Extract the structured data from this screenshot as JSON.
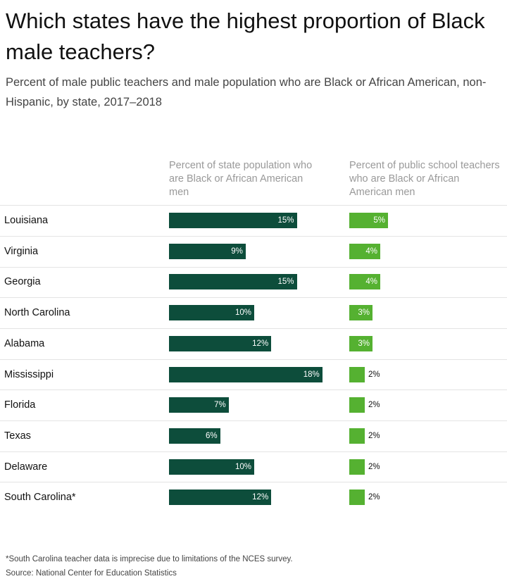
{
  "chart_data": {
    "type": "bar",
    "title": "Which states have the highest proportion of Black male teachers?",
    "subtitle": "Percent of male public teachers and male population who are Black or African American, non-Hispanic, by state, 2017–2018",
    "categories": [
      "Louisiana",
      "Virginia",
      "Georgia",
      "North Carolina",
      "Alabama",
      "Mississippi",
      "Florida",
      "Texas",
      "Delaware",
      "South Carolina*"
    ],
    "series": [
      {
        "name": "Percent of state population who are Black or African American men",
        "color": "#0d4d3b",
        "values": [
          15,
          9,
          15,
          10,
          12,
          18,
          7,
          6,
          10,
          12
        ],
        "value_labels": [
          "15%",
          "9%",
          "15%",
          "10%",
          "12%",
          "18%",
          "7%",
          "6%",
          "10%",
          "12%"
        ]
      },
      {
        "name": "Percent of public school teachers who are Black or African American men",
        "color": "#55b131",
        "values": [
          5,
          4,
          4,
          3,
          3,
          2,
          2,
          2,
          2,
          2
        ],
        "value_labels": [
          "5%",
          "4%",
          "4%",
          "3%",
          "3%",
          "2%",
          "2%",
          "2%",
          "2%",
          "2%"
        ]
      }
    ],
    "footnote": "*South Carolina teacher data is imprecise due to limitations of the NCES survey.",
    "source": "Source: National Center for Education Statistics"
  }
}
